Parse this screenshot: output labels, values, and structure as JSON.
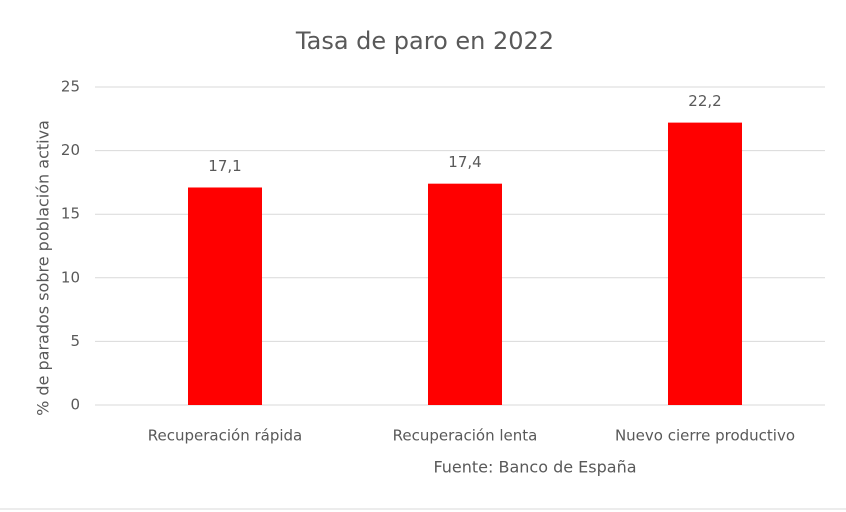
{
  "chart_data": {
    "type": "bar",
    "title": "Tasa de paro en 2022",
    "y_axis_label": "% de parados sobre población activa",
    "x_axis_label": "Fuente: Banco de España",
    "categories": [
      "Recuperación rápida",
      "Recuperación lenta",
      "Nuevo cierre productivo"
    ],
    "values": [
      17.1,
      17.4,
      22.2
    ],
    "value_labels": [
      "17,1",
      "17,4",
      "22,2"
    ],
    "color": "#ff0000",
    "ylim": [
      0,
      25
    ],
    "yticks": [
      0,
      5,
      10,
      15,
      20,
      25
    ],
    "grid": true
  }
}
